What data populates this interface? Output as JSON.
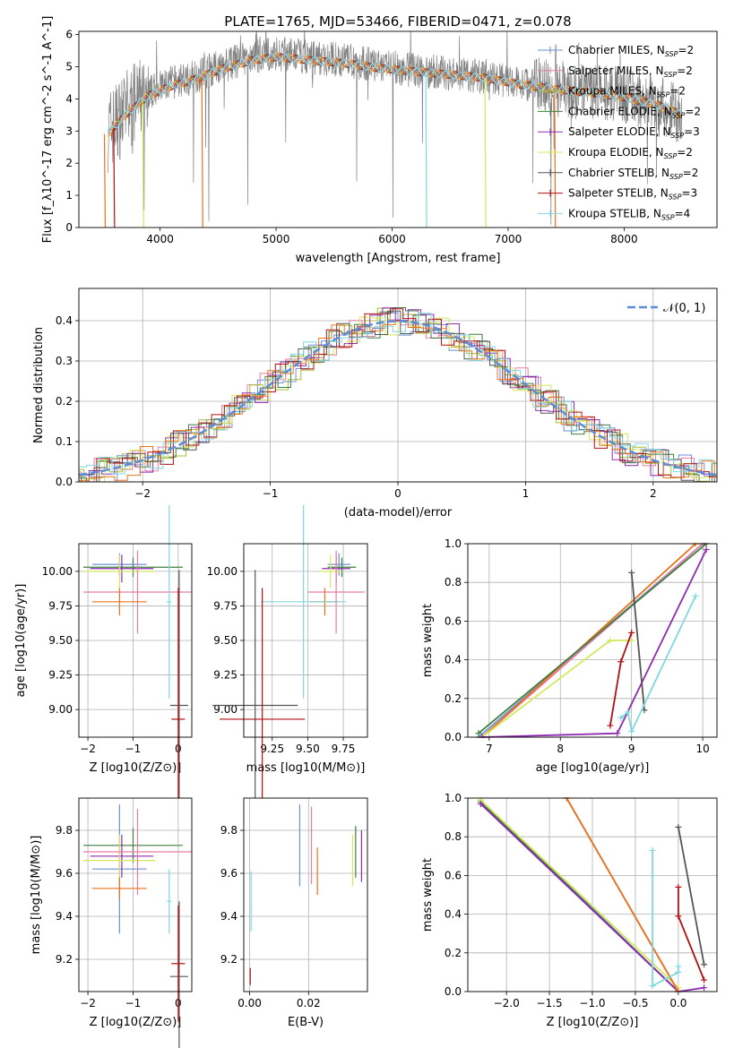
{
  "figure_title": "PLATE=1765, MJD=53466, FIBERID=0471, z=0.078",
  "colors": {
    "chabrier_miles": "#6a8fd8",
    "salpeter_miles": "#e87ca8",
    "kroupa_miles": "#a3bf33",
    "chabrier_elodie": "#3f7f3f",
    "salpeter_elodie": "#8e2bb0",
    "kroupa_elodie": "#d4e85c",
    "chabrier_stelib": "#555555",
    "salpeter_stelib": "#b01010",
    "kroupa_stelib": "#7fd8e0",
    "orange": "#e8731a",
    "data_grey": "#808080",
    "normal_curve": "#5b8ed6"
  },
  "chart_data": [
    {
      "id": "spectrum",
      "type": "line",
      "xlabel": "wavelength [Angstrom, rest frame]",
      "ylabel": "Flux [f_λ10^-17 erg cm^-2 s^-1 A^-1]",
      "xlim": [
        3300,
        8800
      ],
      "ylim": [
        0,
        6.1
      ],
      "xticks": [
        "4000",
        "5000",
        "6000",
        "7000",
        "8000"
      ],
      "yticks": [
        "0",
        "1",
        "2",
        "3",
        "4",
        "5",
        "6"
      ],
      "data_line": {
        "x": [
          3550,
          3700,
          3900,
          4100,
          4300,
          4500,
          4800,
          5000,
          5300,
          5600,
          5900,
          6200,
          6500,
          6800,
          7100,
          7400,
          7700,
          8000,
          8300,
          8500
        ],
        "y": [
          3.0,
          3.6,
          4.2,
          4.5,
          4.7,
          5.0,
          5.3,
          5.4,
          5.3,
          5.2,
          5.0,
          4.9,
          4.8,
          4.7,
          4.5,
          4.3,
          4.2,
          4.1,
          3.8,
          3.5
        ]
      },
      "model_line": {
        "x": [
          3550,
          3700,
          3900,
          4100,
          4300,
          4500,
          4800,
          5000,
          5300,
          5600,
          5900,
          6200,
          6500,
          6800,
          7100,
          7400,
          7700,
          8000,
          8300,
          8500
        ],
        "y": [
          2.9,
          3.5,
          4.1,
          4.4,
          4.6,
          4.9,
          5.2,
          5.3,
          5.2,
          5.1,
          4.95,
          4.85,
          4.75,
          4.65,
          4.45,
          4.3,
          4.2,
          4.05,
          3.8,
          3.5
        ]
      },
      "legend": [
        {
          "label": "Chabrier MILES, N",
          "sub": "SSP",
          "val": "=2",
          "color": "chabrier_miles"
        },
        {
          "label": "Salpeter MILES, N",
          "sub": "SSP",
          "val": "=2",
          "color": "salpeter_miles"
        },
        {
          "label": "Kroupa MILES, N",
          "sub": "SSP",
          "val": "=2",
          "color": "kroupa_miles"
        },
        {
          "label": "Chabrier ELODIE, N",
          "sub": "SSP",
          "val": "=2",
          "color": "chabrier_elodie"
        },
        {
          "label": "Salpeter ELODIE, N",
          "sub": "SSP",
          "val": "=3",
          "color": "salpeter_elodie"
        },
        {
          "label": "Kroupa ELODIE, N",
          "sub": "SSP",
          "val": "=2",
          "color": "kroupa_elodie"
        },
        {
          "label": "Chabrier STELIB, N",
          "sub": "SSP",
          "val": "=2",
          "color": "chabrier_stelib"
        },
        {
          "label": "Salpeter STELIB, N",
          "sub": "SSP",
          "val": "=3",
          "color": "salpeter_stelib"
        },
        {
          "label": "Kroupa STELIB, N",
          "sub": "SSP",
          "val": "=4",
          "color": "kroupa_stelib"
        }
      ]
    },
    {
      "id": "residuals",
      "type": "histogram",
      "xlabel": "(data-model)/error",
      "ylabel": "Normed distribution",
      "xlim": [
        -2.5,
        2.5
      ],
      "ylim": [
        0,
        0.48
      ],
      "xticks": [
        "−2",
        "−1",
        "0",
        "1",
        "2"
      ],
      "yticks": [
        "0.0",
        "0.1",
        "0.2",
        "0.3",
        "0.4"
      ],
      "legend": [
        {
          "label": "𝒩(0, 1)",
          "color": "normal_curve"
        }
      ]
    },
    {
      "id": "age_vs_Z",
      "type": "scatter",
      "xlabel": "Z [log10(Z/Z⊙)]",
      "ylabel": "age [log10(age/yr)]",
      "xlim": [
        -2.2,
        0.3
      ],
      "ylim": [
        8.8,
        10.2
      ],
      "xticks": [
        "−2",
        "−1",
        "0"
      ],
      "yticks": [
        "9.00",
        "9.25",
        "9.50",
        "9.75",
        "10.00"
      ],
      "points": [
        {
          "x": -1.3,
          "y": 10.05,
          "xerr": 0.6,
          "yerr": 0.08,
          "color": "chabrier_miles"
        },
        {
          "x": -1.0,
          "y": 10.03,
          "xerr": 1.1,
          "yerr": 0.07,
          "color": "chabrier_elodie"
        },
        {
          "x": -1.25,
          "y": 10.02,
          "xerr": 0.7,
          "yerr": 0.1,
          "color": "salpeter_elodie"
        },
        {
          "x": -1.3,
          "y": 10.0,
          "xerr": 0.8,
          "yerr": 0.12,
          "color": "kroupa_elodie"
        },
        {
          "x": -0.9,
          "y": 9.85,
          "xerr": 1.2,
          "yerr": 0.3,
          "color": "salpeter_miles"
        },
        {
          "x": -1.3,
          "y": 9.78,
          "xerr": 0.6,
          "yerr": 0.1,
          "color": "orange"
        },
        {
          "x": -0.2,
          "y": 9.78,
          "xerr": 0.05,
          "yerr": 0.7,
          "color": "kroupa_stelib"
        },
        {
          "x": 0.02,
          "y": 9.03,
          "xerr": 0.2,
          "yerr": 0.98,
          "color": "chabrier_stelib"
        },
        {
          "x": 0.0,
          "y": 8.93,
          "xerr": 0.15,
          "yerr": 0.95,
          "color": "salpeter_stelib"
        }
      ]
    },
    {
      "id": "age_vs_mass",
      "type": "scatter",
      "xlabel": "mass [log10(M/M⊙)]",
      "xlim": [
        9.05,
        9.92
      ],
      "ylim": [
        8.8,
        10.2
      ],
      "xticks": [
        "9.25",
        "9.50",
        "9.75"
      ],
      "yticks": [
        "9.00",
        "9.25",
        "9.50",
        "9.75",
        "10.00"
      ],
      "points": [
        {
          "x": 9.72,
          "y": 10.05,
          "xerr": 0.08,
          "yerr": 0.08,
          "color": "chabrier_miles"
        },
        {
          "x": 9.74,
          "y": 10.03,
          "xerr": 0.1,
          "yerr": 0.07,
          "color": "chabrier_elodie"
        },
        {
          "x": 9.7,
          "y": 10.02,
          "xerr": 0.1,
          "yerr": 0.1,
          "color": "salpeter_elodie"
        },
        {
          "x": 9.66,
          "y": 10.0,
          "xerr": 0.08,
          "yerr": 0.12,
          "color": "kroupa_elodie"
        },
        {
          "x": 9.7,
          "y": 9.85,
          "xerr": 0.2,
          "yerr": 0.3,
          "color": "salpeter_miles"
        },
        {
          "x": 9.62,
          "y": 9.78,
          "xerr": 0.1,
          "yerr": 0.1,
          "color": "orange"
        },
        {
          "x": 9.47,
          "y": 9.78,
          "xerr": 0.3,
          "yerr": 0.7,
          "color": "kroupa_stelib"
        },
        {
          "x": 9.13,
          "y": 9.03,
          "xerr": 0.3,
          "yerr": 0.98,
          "color": "chabrier_stelib"
        },
        {
          "x": 9.18,
          "y": 8.93,
          "xerr": 0.3,
          "yerr": 0.95,
          "color": "salpeter_stelib"
        }
      ]
    },
    {
      "id": "weight_vs_age",
      "type": "line",
      "xlabel": "age [log10(age/yr)]",
      "ylabel": "mass weight",
      "xlim": [
        6.7,
        10.2
      ],
      "ylim": [
        0,
        1
      ],
      "xticks": [
        "7",
        "8",
        "9",
        "10"
      ],
      "yticks": [
        "0.0",
        "0.2",
        "0.4",
        "0.6",
        "0.8",
        "1.0"
      ],
      "series": [
        {
          "color": "chabrier_miles",
          "x": [
            6.85,
            10.0
          ],
          "y": [
            0.0,
            1.0
          ]
        },
        {
          "color": "salpeter_miles",
          "x": [
            6.9,
            10.0
          ],
          "y": [
            0.0,
            1.0
          ]
        },
        {
          "color": "orange",
          "x": [
            6.9,
            9.9
          ],
          "y": [
            0.0,
            1.0
          ]
        },
        {
          "color": "chabrier_elodie",
          "x": [
            6.85,
            10.05
          ],
          "y": [
            0.02,
            1.0
          ]
        },
        {
          "color": "kroupa_elodie",
          "x": [
            6.9,
            8.7,
            9.0
          ],
          "y": [
            0.0,
            0.5,
            0.5
          ]
        },
        {
          "color": "salpeter_elodie",
          "x": [
            6.9,
            8.8,
            10.05
          ],
          "y": [
            0.0,
            0.02,
            0.97
          ]
        },
        {
          "color": "chabrier_stelib",
          "x": [
            9.0,
            9.18
          ],
          "y": [
            0.85,
            0.14
          ]
        },
        {
          "color": "salpeter_stelib",
          "x": [
            8.7,
            8.85,
            9.0
          ],
          "y": [
            0.06,
            0.39,
            0.54
          ]
        },
        {
          "color": "kroupa_stelib",
          "x": [
            8.85,
            8.95,
            9.0,
            9.9
          ],
          "y": [
            0.1,
            0.13,
            0.03,
            0.73
          ]
        }
      ]
    },
    {
      "id": "mass_vs_Z",
      "type": "scatter",
      "xlabel": "Z [log10(Z/Z⊙)]",
      "ylabel": "mass [log10(M/M⊙)]",
      "xlim": [
        -2.2,
        0.3
      ],
      "ylim": [
        9.05,
        9.95
      ],
      "xticks": [
        "−2",
        "−1",
        "0"
      ],
      "yticks": [
        "9.2",
        "9.4",
        "9.6",
        "9.8"
      ],
      "points": [
        {
          "x": -1.3,
          "y": 9.62,
          "xerr": 0.6,
          "yerr": 0.3,
          "color": "chabrier_miles"
        },
        {
          "x": -1.0,
          "y": 9.73,
          "xerr": 1.1,
          "yerr": 0.08,
          "color": "chabrier_elodie"
        },
        {
          "x": -1.25,
          "y": 9.68,
          "xerr": 0.7,
          "yerr": 0.1,
          "color": "salpeter_elodie"
        },
        {
          "x": -1.3,
          "y": 9.66,
          "xerr": 0.8,
          "yerr": 0.12,
          "color": "kroupa_elodie"
        },
        {
          "x": -0.9,
          "y": 9.7,
          "xerr": 1.2,
          "yerr": 0.2,
          "color": "salpeter_miles"
        },
        {
          "x": -1.3,
          "y": 9.53,
          "xerr": 0.6,
          "yerr": 0.05,
          "color": "orange"
        },
        {
          "x": -0.2,
          "y": 9.47,
          "xerr": 0.05,
          "yerr": 0.15,
          "color": "kroupa_stelib"
        },
        {
          "x": 0.02,
          "y": 9.12,
          "xerr": 0.2,
          "yerr": 0.35,
          "color": "chabrier_stelib"
        },
        {
          "x": 0.0,
          "y": 9.18,
          "xerr": 0.15,
          "yerr": 0.27,
          "color": "salpeter_stelib"
        }
      ]
    },
    {
      "id": "mass_vs_EBV",
      "type": "scatter",
      "xlabel": "E(B-V)",
      "xlim": [
        -0.002,
        0.04
      ],
      "ylim": [
        9.05,
        9.95
      ],
      "xticks": [
        "0.00",
        "0.02"
      ],
      "yticks": [
        "9.2",
        "9.4",
        "9.6",
        "9.8"
      ],
      "points": [
        {
          "x": 0.017,
          "y": 9.73,
          "yerr": 0.19,
          "color": "chabrier_miles"
        },
        {
          "x": 0.036,
          "y": 9.7,
          "yerr": 0.12,
          "color": "chabrier_elodie"
        },
        {
          "x": 0.038,
          "y": 9.68,
          "yerr": 0.12,
          "color": "salpeter_elodie"
        },
        {
          "x": 0.035,
          "y": 9.66,
          "yerr": 0.12,
          "color": "kroupa_elodie"
        },
        {
          "x": 0.021,
          "y": 9.73,
          "yerr": 0.18,
          "color": "salpeter_miles"
        },
        {
          "x": 0.023,
          "y": 9.61,
          "yerr": 0.11,
          "color": "orange"
        },
        {
          "x": 0.0005,
          "y": 9.47,
          "yerr": 0.14,
          "color": "kroupa_stelib"
        },
        {
          "x": 0.0002,
          "y": 9.12,
          "yerr": 0.04,
          "color": "salpeter_stelib"
        }
      ]
    },
    {
      "id": "weight_vs_Z",
      "type": "line",
      "xlabel": "Z [log10(Z/Z⊙)]",
      "ylabel": "mass weight",
      "xlim": [
        -2.45,
        0.45
      ],
      "ylim": [
        0,
        1
      ],
      "xticks": [
        "−2.0",
        "−1.5",
        "−1.0",
        "−0.5",
        "0.0"
      ],
      "yticks": [
        "0.0",
        "0.2",
        "0.4",
        "0.6",
        "0.8",
        "1.0"
      ],
      "series": [
        {
          "color": "chabrier_miles",
          "x": [
            -2.3,
            0.0
          ],
          "y": [
            0.99,
            0.0
          ]
        },
        {
          "color": "chabrier_elodie",
          "x": [
            -2.3,
            0.0
          ],
          "y": [
            0.98,
            0.0
          ]
        },
        {
          "color": "kroupa_elodie",
          "x": [
            -2.3,
            0.0
          ],
          "y": [
            0.99,
            0.02
          ]
        },
        {
          "color": "salpeter_elodie",
          "x": [
            -2.3,
            0.0,
            0.3
          ],
          "y": [
            0.97,
            0.0,
            0.02
          ]
        },
        {
          "color": "salpeter_miles",
          "x": [
            -1.3,
            0.0
          ],
          "y": [
            1.0,
            0.0
          ]
        },
        {
          "color": "orange",
          "x": [
            -1.3,
            0.0
          ],
          "y": [
            1.0,
            0.0
          ]
        },
        {
          "color": "chabrier_stelib",
          "x": [
            0.0,
            0.3
          ],
          "y": [
            0.85,
            0.14
          ]
        },
        {
          "color": "salpeter_stelib",
          "x": [
            0.3,
            0.0,
            0.0
          ],
          "y": [
            0.06,
            0.39,
            0.54
          ]
        },
        {
          "color": "kroupa_stelib",
          "x": [
            -0.3,
            -0.3,
            0.0,
            0.0
          ],
          "y": [
            0.73,
            0.03,
            0.1,
            0.13
          ]
        }
      ]
    }
  ]
}
